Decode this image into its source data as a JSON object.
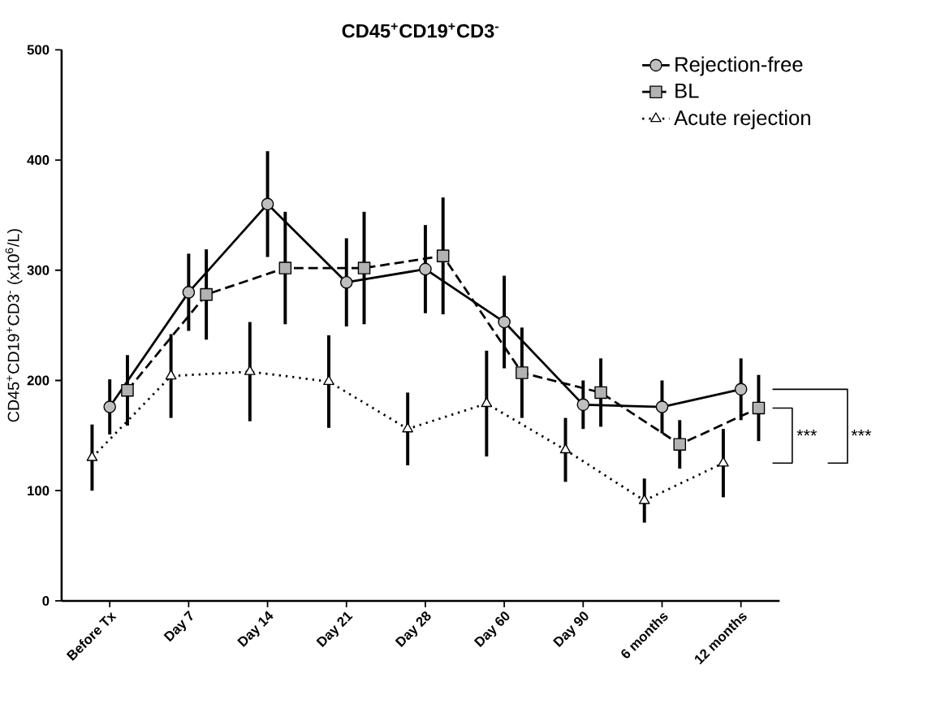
{
  "chart_data": {
    "type": "line",
    "title": "CD45$^{+}$CD19$^{+}$CD3$^{-}$",
    "ylabel": "CD45$^{+}$CD19$^{+}$CD3$^{-}$ (x10$^{6}$/L)",
    "categories": [
      "Before Tx",
      "Day 7",
      "Day 14",
      "Day 21",
      "Day 28",
      "Day 60",
      "Day 90",
      "6 months",
      "12 months"
    ],
    "series": [
      {
        "name": "Rejection-free",
        "color": "#000000",
        "marker": "circle",
        "line_style": "solid",
        "values": [
          176,
          280,
          360,
          289,
          301,
          253,
          178,
          176,
          192
        ],
        "errors": [
          25,
          35,
          48,
          40,
          40,
          42,
          22,
          24,
          28
        ]
      },
      {
        "name": "BL",
        "color": "#000000",
        "marker": "square",
        "line_style": "dashed",
        "values": [
          191,
          278,
          302,
          302,
          313,
          207,
          189,
          142,
          175
        ],
        "errors": [
          32,
          41,
          51,
          51,
          53,
          41,
          31,
          22,
          30
        ]
      },
      {
        "name": "Acute rejection",
        "color": "#000000",
        "marker": "triangle",
        "line_style": "dotted",
        "values": [
          130,
          204,
          208,
          199,
          156,
          179,
          137,
          91,
          125
        ],
        "errors": [
          30,
          38,
          45,
          42,
          33,
          48,
          29,
          20,
          31
        ]
      }
    ],
    "ylim": [
      0,
      500
    ],
    "yticks": [
      0,
      100,
      200,
      300,
      400,
      500
    ],
    "legend": "top right",
    "grid": false,
    "annotations": [
      "***",
      "***"
    ]
  }
}
